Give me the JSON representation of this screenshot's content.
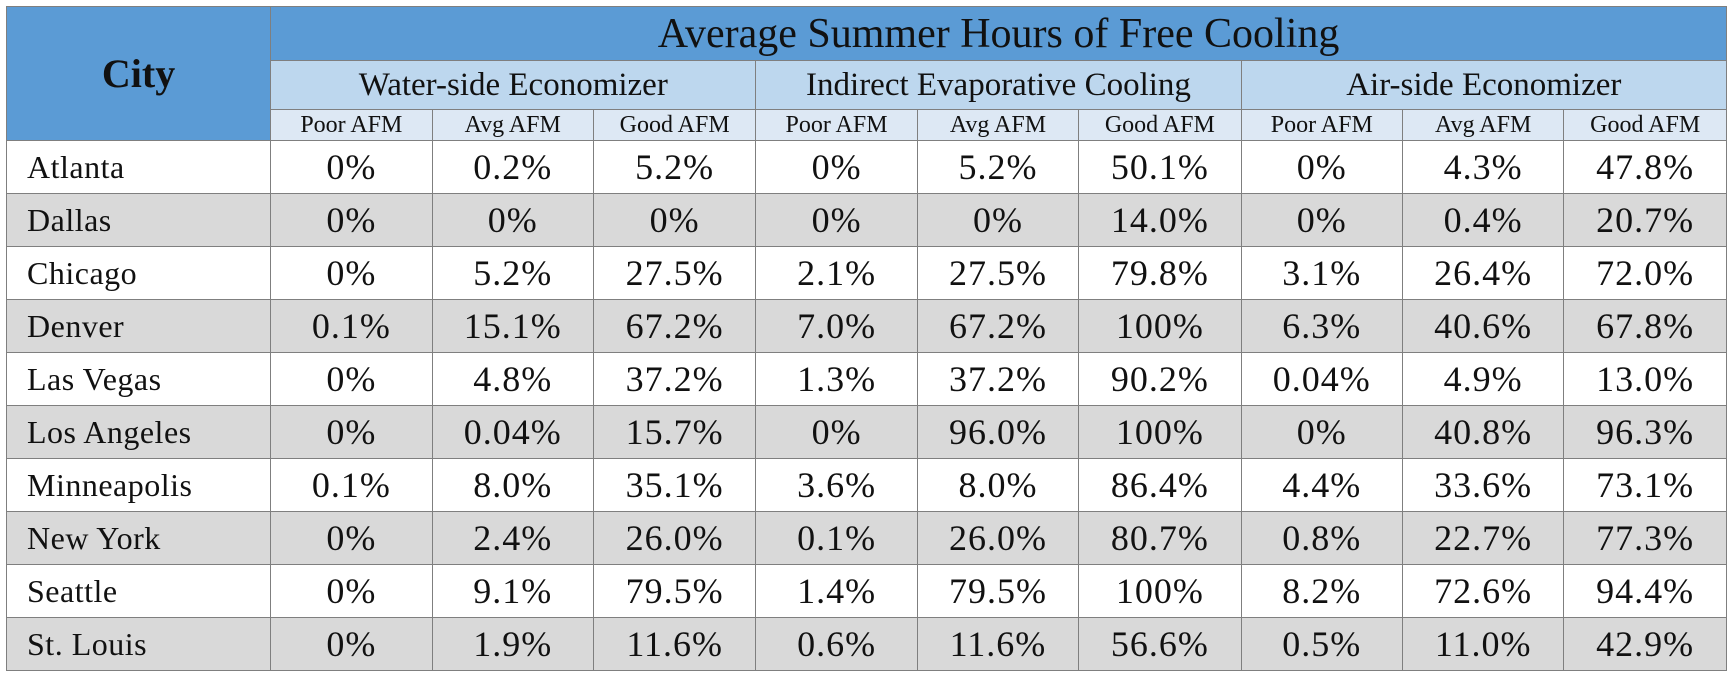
{
  "table": {
    "city_header": "City",
    "title": "Average Summer Hours of Free Cooling",
    "groups": [
      "Water-side Economizer",
      "Indirect Evaporative Cooling",
      "Air-side Economizer"
    ],
    "subheaders": [
      "Poor AFM",
      "Avg AFM",
      "Good AFM",
      "Poor AFM",
      "Avg AFM",
      "Good AFM",
      "Poor AFM",
      "Avg AFM",
      "Good AFM"
    ],
    "rows": [
      {
        "city": "Atlanta",
        "values": [
          "0%",
          "0.2%",
          "5.2%",
          "0%",
          "5.2%",
          "50.1%",
          "0%",
          "4.3%",
          "47.8%"
        ]
      },
      {
        "city": "Dallas",
        "values": [
          "0%",
          "0%",
          "0%",
          "0%",
          "0%",
          "14.0%",
          "0%",
          "0.4%",
          "20.7%"
        ]
      },
      {
        "city": "Chicago",
        "values": [
          "0%",
          "5.2%",
          "27.5%",
          "2.1%",
          "27.5%",
          "79.8%",
          "3.1%",
          "26.4%",
          "72.0%"
        ]
      },
      {
        "city": "Denver",
        "values": [
          "0.1%",
          "15.1%",
          "67.2%",
          "7.0%",
          "67.2%",
          "100%",
          "6.3%",
          "40.6%",
          "67.8%"
        ]
      },
      {
        "city": "Las Vegas",
        "values": [
          "0%",
          "4.8%",
          "37.2%",
          "1.3%",
          "37.2%",
          "90.2%",
          "0.04%",
          "4.9%",
          "13.0%"
        ]
      },
      {
        "city": "Los Angeles",
        "values": [
          "0%",
          "0.04%",
          "15.7%",
          "0%",
          "96.0%",
          "100%",
          "0%",
          "40.8%",
          "96.3%"
        ]
      },
      {
        "city": "Minneapolis",
        "values": [
          "0.1%",
          "8.0%",
          "35.1%",
          "3.6%",
          "8.0%",
          "86.4%",
          "4.4%",
          "33.6%",
          "73.1%"
        ]
      },
      {
        "city": "New York",
        "values": [
          "0%",
          "2.4%",
          "26.0%",
          "0.1%",
          "26.0%",
          "80.7%",
          "0.8%",
          "22.7%",
          "77.3%"
        ]
      },
      {
        "city": "Seattle",
        "values": [
          "0%",
          "9.1%",
          "79.5%",
          "1.4%",
          "79.5%",
          "100%",
          "8.2%",
          "72.6%",
          "94.4%"
        ]
      },
      {
        "city": "St. Louis",
        "values": [
          "0%",
          "1.9%",
          "11.6%",
          "0.6%",
          "11.6%",
          "56.6%",
          "0.5%",
          "11.0%",
          "42.9%"
        ]
      }
    ]
  },
  "colors": {
    "header_dark": "#5b9bd5",
    "header_light": "#bdd7ee",
    "row_alt": "#d9d9d9"
  }
}
